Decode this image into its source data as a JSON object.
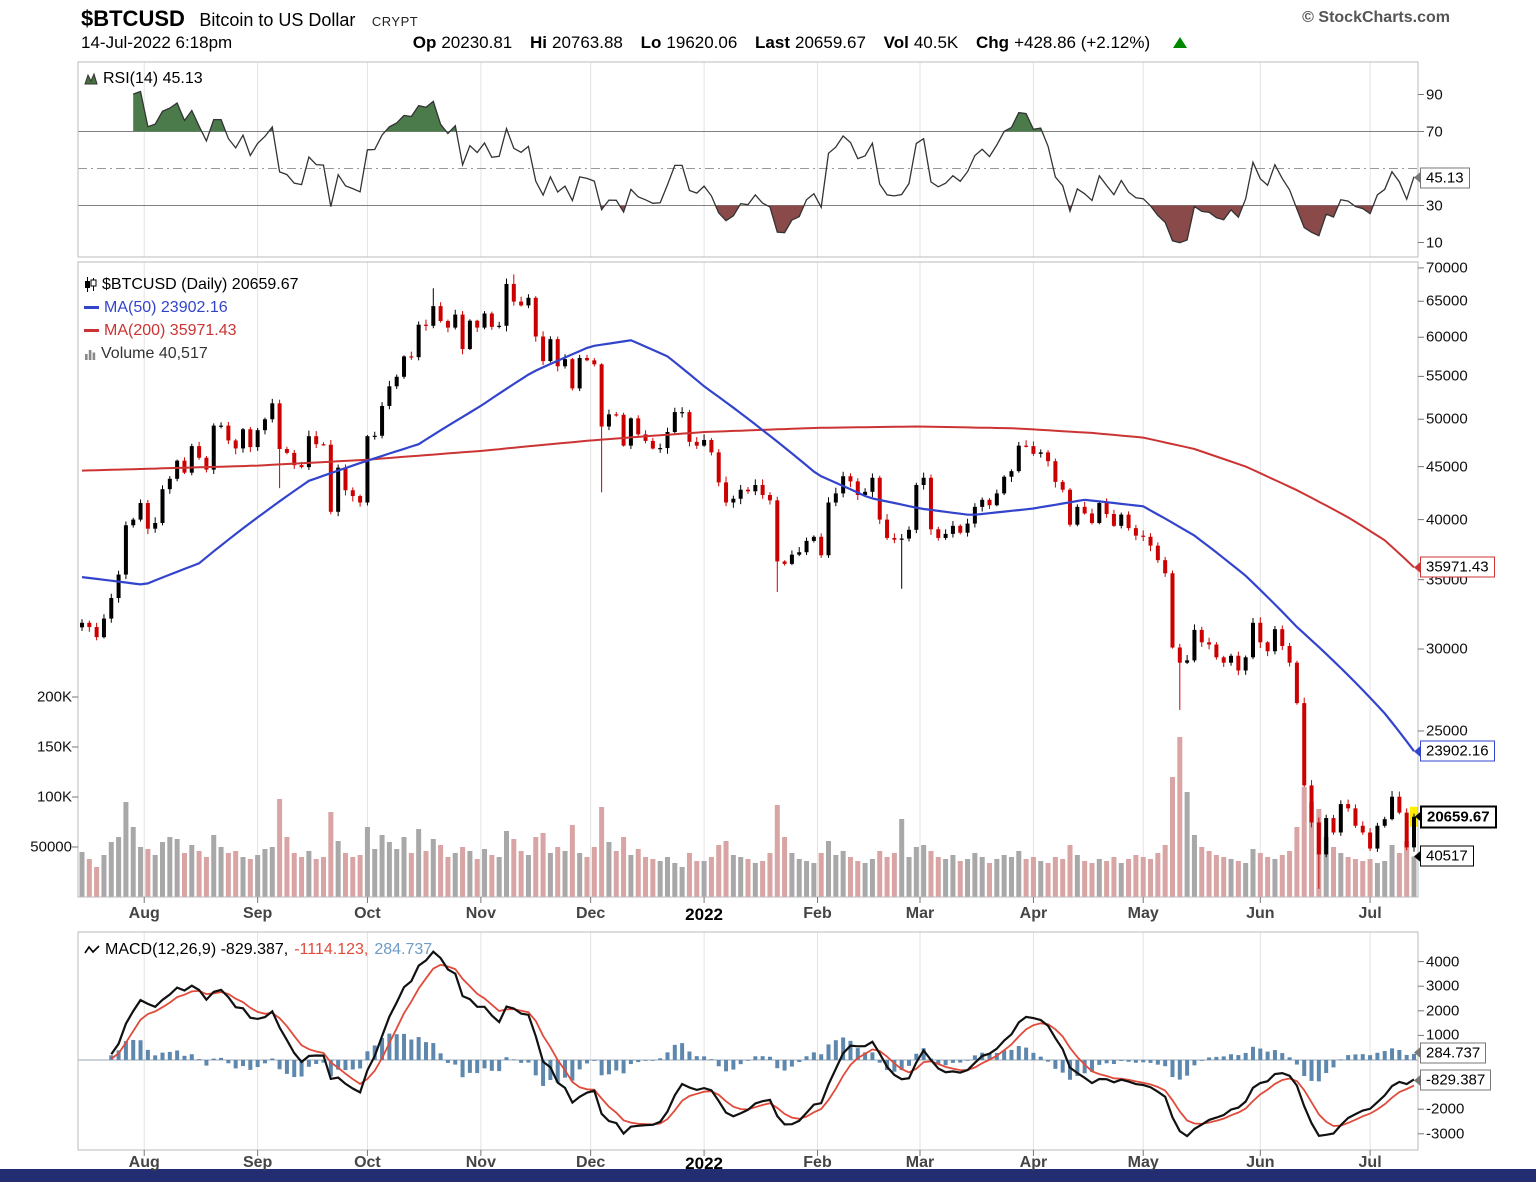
{
  "header": {
    "symbol": "$BTCUSD",
    "name": "Bitcoin to US Dollar",
    "exchange": "CRYPT",
    "credit": "© StockCharts.com",
    "datetime": "14-Jul-2022 6:18pm",
    "quote": {
      "op_label": "Op",
      "op": "20230.81",
      "hi_label": "Hi",
      "hi": "20763.88",
      "lo_label": "Lo",
      "lo": "19620.06",
      "last_label": "Last",
      "last": "20659.67",
      "vol_label": "Vol",
      "vol": "40.5K",
      "chg_label": "Chg",
      "chg": "+428.86 (+2.12%)"
    }
  },
  "rsi_panel": {
    "legend": "RSI(14) 45.13",
    "yticks": [
      90,
      70,
      30,
      10
    ]
  },
  "main_panel": {
    "title": "$BTCUSD (Daily) 20659.67",
    "ma50_label": "MA(50) 23902.16",
    "ma200_label": "MA(200) 35971.43",
    "volume_label": "Volume 40,517",
    "yticks": [
      70000,
      65000,
      60000,
      55000,
      50000,
      45000,
      40000,
      35000,
      30000,
      25000
    ],
    "volume_yticks": [
      {
        "label": "200K",
        "v": 200
      },
      {
        "label": "150K",
        "v": 150
      },
      {
        "label": "100K",
        "v": 100
      },
      {
        "label": "50000",
        "v": 50
      }
    ]
  },
  "macd_panel": {
    "legend_macd": "MACD(12,26,9) -829.387,",
    "legend_signal": "-1114.123,",
    "legend_hist": "284.737",
    "yticks": [
      4000,
      3000,
      2000,
      1000,
      -2000,
      -3000
    ]
  },
  "xaxis": {
    "months": [
      {
        "label": "Aug",
        "day": 17
      },
      {
        "label": "Sep",
        "day": 48
      },
      {
        "label": "Oct",
        "day": 78
      },
      {
        "label": "Nov",
        "day": 109
      },
      {
        "label": "Dec",
        "day": 139
      },
      {
        "label": "2022",
        "day": 170,
        "bold": true
      },
      {
        "label": "Feb",
        "day": 201
      },
      {
        "label": "Mar",
        "day": 229
      },
      {
        "label": "Apr",
        "day": 260
      },
      {
        "label": "May",
        "day": 290
      },
      {
        "label": "Jun",
        "day": 322
      },
      {
        "label": "Jul",
        "day": 352
      }
    ]
  },
  "callouts": [
    {
      "name": "rsi",
      "panel": "rsi",
      "value": 45.13,
      "label": "45.13",
      "style": "co-gray"
    },
    {
      "name": "ma200",
      "panel": "price",
      "value": 35971.43,
      "label": "35971.43",
      "style": "co-red"
    },
    {
      "name": "ma50",
      "panel": "price",
      "value": 23902.16,
      "label": "23902.16",
      "style": "co-blue"
    },
    {
      "name": "last-price",
      "panel": "price",
      "value": 20659.67,
      "label": "20659.67",
      "style": "co-black-bold"
    },
    {
      "name": "volume",
      "panel": "vol",
      "value": 40.517,
      "label": "40517",
      "style": "co-black"
    },
    {
      "name": "macd-hist",
      "panel": "macd",
      "value": 284.737,
      "label": "284.737",
      "style": "co-gray"
    },
    {
      "name": "macd-line",
      "panel": "macd",
      "value": -829.387,
      "label": "-829.387",
      "style": "co-gray"
    }
  ],
  "colors": {
    "up": "#000000",
    "down": "#cc0000",
    "ma50": "#3344cc",
    "ma200": "#cc3333",
    "vol_up": "#a8a8a8",
    "vol_down": "#d8a4a4",
    "macd_hist": "#5e87ae",
    "macd_signal": "#e04b3b",
    "macd_line": "#111111",
    "rsi_line": "#333333",
    "rsi_over": "#4b7a4b",
    "rsi_under": "#8a4a4a",
    "grid": "#e3e3e3",
    "panel_border": "#bbbbbb",
    "threshold": "#808080",
    "highlight": "#ffee00",
    "chg_arrow": "#008800",
    "bottom_bar": "#232e72"
  },
  "chart_data": [
    {
      "type": "line",
      "name": "RSI(14)",
      "last": 45.13,
      "ylim": [
        0,
        100
      ],
      "bands": [
        70,
        50,
        30
      ]
    },
    {
      "type": "candlestick",
      "name": "$BTCUSD Daily",
      "start": "15-Jul-2021",
      "end": "14-Jul-2022",
      "step_days": 2,
      "last": 20659.67,
      "open": 20230.81,
      "high": 20763.88,
      "low": 19620.06,
      "change": 428.86,
      "change_pct": 2.12,
      "ma50_last": 23902.16,
      "ma200_last": 35971.43,
      "volume_last": 40517,
      "ylog": true,
      "ylim": [
        17280,
        70950
      ],
      "closes": [
        31800,
        31500,
        30800,
        32100,
        33600,
        35400,
        39500,
        40000,
        41500,
        39200,
        39700,
        42800,
        43800,
        45600,
        44400,
        47100,
        45900,
        44700,
        49300,
        49300,
        47700,
        46860,
        48900,
        47000,
        48800,
        50000,
        51800,
        46800,
        46400,
        45150,
        44950,
        48150,
        47300,
        47250,
        40700,
        44900,
        42700,
        42150,
        41550,
        48150,
        48200,
        51500,
        53800,
        54950,
        57500,
        57400,
        61700,
        61550,
        64300,
        62200,
        61300,
        63100,
        58450,
        62250,
        61300,
        63250,
        61400,
        61550,
        67550,
        64950,
        64400,
        65500,
        60100,
        56900,
        59750,
        56250,
        57150,
        53550,
        57300,
        57000,
        56500,
        49200,
        50550,
        50500,
        47150,
        50100,
        48350,
        47650,
        46850,
        46900,
        48600,
        50800,
        50800,
        47550,
        47150,
        47750,
        46450,
        43450,
        41550,
        41900,
        42750,
        42600,
        43200,
        42250,
        41750,
        36450,
        36250,
        37000,
        37200,
        38150,
        38500,
        36950,
        41550,
        42400,
        44050,
        43550,
        42250,
        42550,
        43900,
        40000,
        38400,
        38250,
        38350,
        39100,
        43200,
        43900,
        39150,
        38400,
        38750,
        39450,
        38850,
        39650,
        41150,
        41800,
        41300,
        42400,
        44000,
        44550,
        47150,
        47100,
        46300,
        46450,
        45550,
        43500,
        42750,
        39550,
        41150,
        40550,
        39700,
        41500,
        40500,
        39450,
        40450,
        39250,
        38600,
        38500,
        37750,
        36550,
        35500,
        30100,
        29100,
        29250,
        31300,
        30450,
        30300,
        29450,
        29100,
        29550,
        28600,
        29450,
        31800,
        30450,
        29850,
        31350,
        30200,
        29100,
        26600,
        22150,
        20400,
        19000,
        20600,
        19950,
        21250,
        21050,
        20250,
        19950,
        19250,
        20250,
        20550,
        21600,
        20850,
        19300,
        20659.67
      ],
      "volumes_k": [
        45,
        38,
        30,
        42,
        55,
        60,
        95,
        70,
        50,
        48,
        42,
        55,
        60,
        58,
        44,
        52,
        46,
        40,
        62,
        50,
        44,
        46,
        40,
        38,
        42,
        48,
        50,
        98,
        60,
        44,
        40,
        46,
        38,
        40,
        85,
        56,
        44,
        40,
        42,
        70,
        48,
        62,
        55,
        48,
        60,
        44,
        68,
        46,
        58,
        52,
        40,
        44,
        50,
        46,
        38,
        48,
        42,
        40,
        66,
        58,
        46,
        42,
        60,
        64,
        44,
        50,
        46,
        72,
        44,
        40,
        50,
        90,
        55,
        46,
        60,
        42,
        48,
        40,
        38,
        36,
        40,
        34,
        30,
        44,
        36,
        36,
        40,
        52,
        56,
        42,
        40,
        38,
        34,
        36,
        44,
        92,
        60,
        44,
        38,
        36,
        34,
        44,
        56,
        42,
        46,
        40,
        36,
        34,
        38,
        46,
        40,
        44,
        78,
        40,
        50,
        52,
        46,
        40,
        38,
        42,
        36,
        38,
        44,
        40,
        34,
        38,
        42,
        40,
        46,
        38,
        40,
        36,
        34,
        40,
        38,
        52,
        42,
        36,
        34,
        38,
        36,
        40,
        34,
        38,
        42,
        40,
        38,
        44,
        52,
        120,
        160,
        105,
        62,
        50,
        46,
        42,
        40,
        38,
        36,
        34,
        48,
        44,
        40,
        38,
        42,
        46,
        70,
        110,
        95,
        88,
        60,
        50,
        44,
        40,
        38,
        36,
        38,
        34,
        36,
        52,
        44,
        56,
        40.5
      ],
      "high_overrides": {
        "48": 66900,
        "59": 69000
      },
      "low_overrides": {
        "27": 42900,
        "71": 42500,
        "95": 34050,
        "112": 34300,
        "150": 26200,
        "169": 17600
      },
      "ma50_keypoints": [
        [
          0,
          35200
        ],
        [
          17,
          34600
        ],
        [
          32,
          36300
        ],
        [
          48,
          40200
        ],
        [
          62,
          43600
        ],
        [
          78,
          45600
        ],
        [
          92,
          47300
        ],
        [
          109,
          51500
        ],
        [
          123,
          55500
        ],
        [
          139,
          58800
        ],
        [
          150,
          59600
        ],
        [
          160,
          57500
        ],
        [
          170,
          53800
        ],
        [
          186,
          48800
        ],
        [
          201,
          44200
        ],
        [
          215,
          42000
        ],
        [
          229,
          41000
        ],
        [
          243,
          40400
        ],
        [
          260,
          41000
        ],
        [
          274,
          41800
        ],
        [
          290,
          41200
        ],
        [
          304,
          38600
        ],
        [
          318,
          35300
        ],
        [
          332,
          31500
        ],
        [
          346,
          28300
        ],
        [
          356,
          26000
        ],
        [
          364,
          23902.16
        ]
      ],
      "ma200_keypoints": [
        [
          0,
          44600
        ],
        [
          48,
          45100
        ],
        [
          78,
          45700
        ],
        [
          109,
          46600
        ],
        [
          139,
          47700
        ],
        [
          170,
          48600
        ],
        [
          201,
          49050
        ],
        [
          229,
          49200
        ],
        [
          255,
          49000
        ],
        [
          276,
          48500
        ],
        [
          290,
          48000
        ],
        [
          304,
          46800
        ],
        [
          318,
          45000
        ],
        [
          332,
          42700
        ],
        [
          346,
          40200
        ],
        [
          356,
          38200
        ],
        [
          364,
          35971.43
        ]
      ]
    },
    {
      "type": "line",
      "name": "MACD(12,26,9)",
      "macd": -829.387,
      "signal": -1114.123,
      "hist": 284.737,
      "ylim": [
        -3500,
        4300
      ]
    }
  ]
}
